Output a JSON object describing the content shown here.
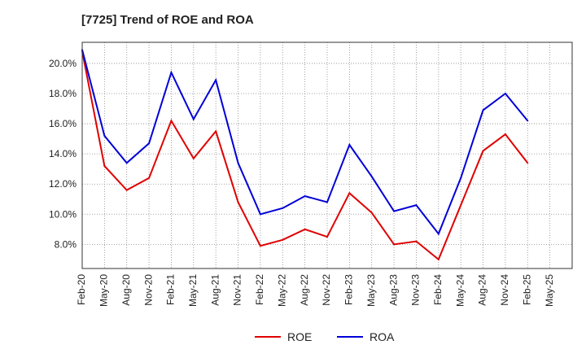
{
  "chart_data": {
    "type": "line",
    "title": "[7725]  Trend of ROE and ROA",
    "xlabel": "",
    "ylabel": "",
    "x": [
      "Feb-20",
      "May-20",
      "Aug-20",
      "Nov-20",
      "Feb-21",
      "May-21",
      "Aug-21",
      "Nov-21",
      "Feb-22",
      "May-22",
      "Aug-22",
      "Nov-22",
      "Feb-23",
      "May-23",
      "Aug-23",
      "Nov-23",
      "Feb-24",
      "May-24",
      "Aug-24",
      "Nov-24",
      "Feb-25",
      "May-25"
    ],
    "y_ticks": [
      "8.0%",
      "10.0%",
      "12.0%",
      "14.0%",
      "16.0%",
      "18.0%",
      "20.0%"
    ],
    "ylim": [
      6.4,
      21.4
    ],
    "grid": true,
    "legend_position": "bottom",
    "series": [
      {
        "name": "ROE",
        "color": "#e00000",
        "values": [
          20.8,
          13.2,
          11.6,
          12.4,
          16.2,
          13.7,
          15.5,
          10.8,
          7.9,
          8.3,
          9.0,
          8.5,
          11.4,
          10.1,
          8.0,
          8.2,
          7.0,
          10.6,
          14.2,
          15.3,
          13.4,
          null
        ]
      },
      {
        "name": "ROA",
        "color": "#0000d8",
        "values": [
          20.9,
          15.2,
          13.4,
          14.7,
          19.4,
          16.3,
          18.9,
          13.4,
          10.0,
          10.4,
          11.2,
          10.8,
          14.6,
          12.5,
          10.2,
          10.6,
          8.7,
          12.4,
          16.9,
          18.0,
          16.2,
          null
        ]
      }
    ]
  }
}
